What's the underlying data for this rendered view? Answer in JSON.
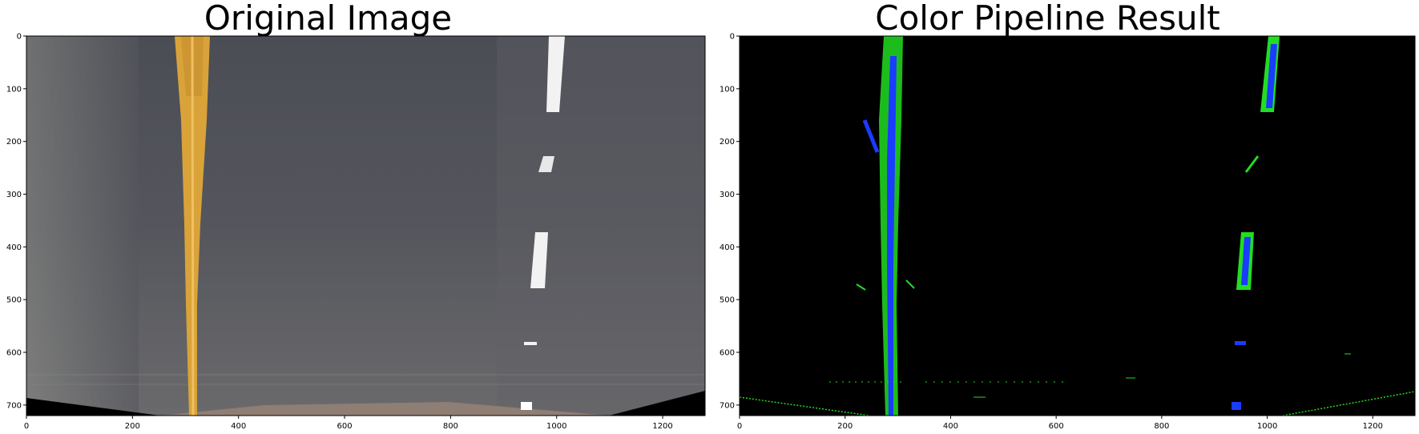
{
  "panels": [
    {
      "title": "Original Image",
      "x_ticks": [
        "0",
        "200",
        "400",
        "600",
        "800",
        "1000",
        "1200"
      ],
      "y_ticks": [
        "0",
        "100",
        "200",
        "300",
        "400",
        "500",
        "600",
        "700"
      ]
    },
    {
      "title": "Color Pipeline Result",
      "x_ticks": [
        "0",
        "200",
        "400",
        "600",
        "800",
        "1000",
        "1200"
      ],
      "y_ticks": [
        "0",
        "100",
        "200",
        "300",
        "400",
        "500",
        "600",
        "700"
      ]
    }
  ],
  "colors": {
    "road": "#55555e",
    "yellow_line": "#d9a33a",
    "white_line": "#f2f2f2",
    "background_black": "#000000",
    "green_pixels": "#22dd22",
    "blue_pixels": "#1a3cff"
  }
}
